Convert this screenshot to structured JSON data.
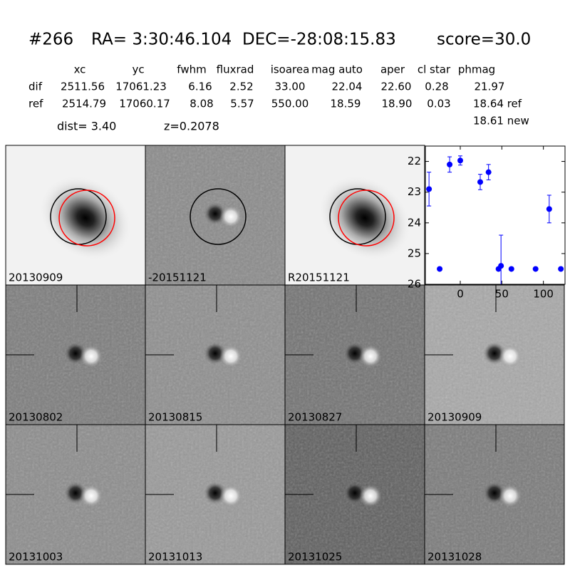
{
  "header": {
    "id": "#266",
    "ra": "RA= 3:30:46.104",
    "dec": "DEC=-28:08:15.83",
    "score": "score=30.0"
  },
  "table": {
    "columns": [
      "xc",
      "yc",
      "fwhm",
      "fluxrad",
      "isoarea",
      "mag auto",
      "aper",
      "cl star",
      "phmag"
    ],
    "rows": [
      [
        "dif",
        "2511.56",
        "17061.23",
        "6.16",
        "2.52",
        "33.00",
        "22.04",
        "22.60",
        "0.28",
        "21.97"
      ],
      [
        "ref",
        "2514.79",
        "17060.17",
        "8.08",
        "5.57",
        "550.00",
        "18.59",
        "18.90",
        "0.03",
        "18.64 ref"
      ]
    ],
    "extra": "18.61 new"
  },
  "dist": "dist=  3.40",
  "z": "z=0.2078",
  "panels": [
    {
      "label": "20130909"
    },
    {
      "label": "-20151121"
    },
    {
      "label": "R20151121"
    },
    {
      "label": "20130802"
    },
    {
      "label": "20130815"
    },
    {
      "label": "20130827"
    },
    {
      "label": "20130909",
      "label_color": "#ff0000"
    },
    {
      "label": "20131003"
    },
    {
      "label": "20131013"
    },
    {
      "label": "20131025"
    },
    {
      "label": "20131028"
    }
  ],
  "chart_data": {
    "type": "errorbar",
    "xlim": [
      -42,
      126
    ],
    "xticks": [
      0,
      50,
      100
    ],
    "ylim": [
      21.5,
      26
    ],
    "yticks": [
      22,
      23,
      24,
      25,
      26
    ],
    "y_inverted": true,
    "series": [
      {
        "color": "#0000ff",
        "x": [
          -37.6,
          -24.8,
          -12.8,
          0,
          24,
          34,
          46,
          49,
          61.5,
          90.6,
          107,
          121
        ],
        "values": [
          22.9,
          25.5,
          22.1,
          21.97,
          22.67,
          22.35,
          25.5,
          25.4,
          25.5,
          25.5,
          23.55,
          25.5
        ],
        "errors": [
          0.55,
          0.05,
          0.25,
          0.15,
          0.25,
          0.25,
          0.05,
          1.0,
          0.05,
          0.05,
          0.45,
          0.05
        ]
      }
    ]
  }
}
